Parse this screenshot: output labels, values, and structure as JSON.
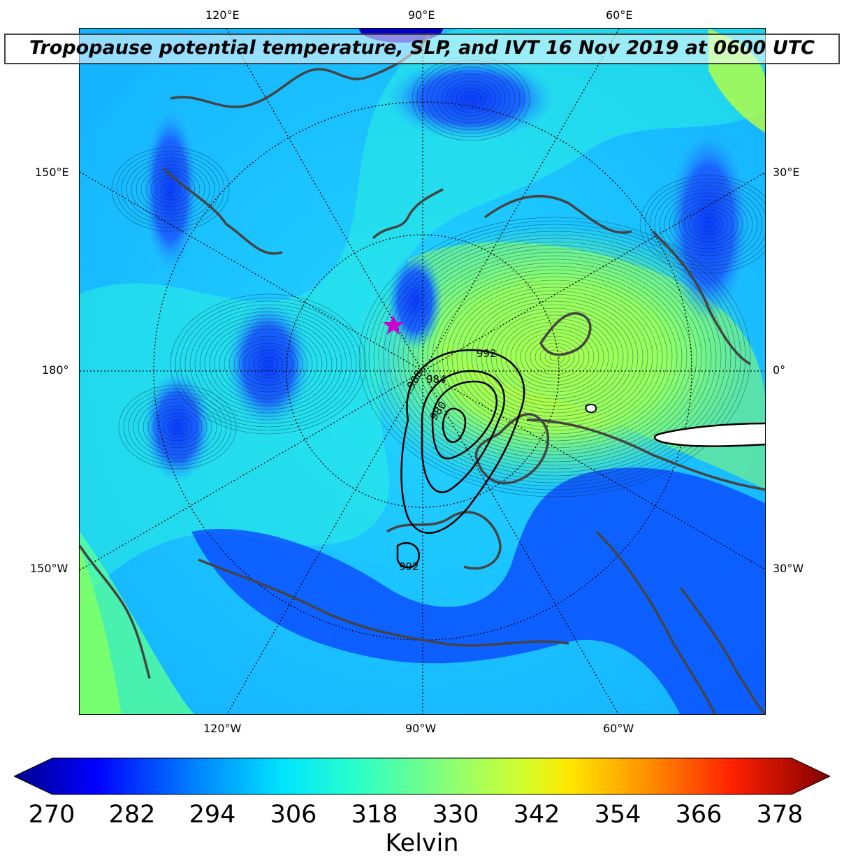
{
  "title": "Tropopause potential temperature, SLP, and IVT 16 Nov 2019 at 0600 UTC",
  "map": {
    "top_labels": [
      "120°E",
      "90°E",
      "60°E"
    ],
    "bottom_labels": [
      "120°W",
      "90°W",
      "60°W"
    ],
    "left_labels": [
      "150°E",
      "180°",
      "150°W"
    ],
    "right_labels": [
      "30°E",
      "0°",
      "30°W"
    ],
    "slp_contours": [
      "992",
      "988",
      "984",
      "980",
      "992"
    ],
    "marker": "star-marker",
    "colors": {
      "coastline": "#444444",
      "slp_contour": "#000000",
      "marker": "#cc00cc"
    }
  },
  "colorbar": {
    "ticks": [
      "270",
      "282",
      "294",
      "306",
      "318",
      "330",
      "342",
      "354",
      "366",
      "378"
    ],
    "label": "Kelvin",
    "colormap": [
      "#00008b",
      "#0000ff",
      "#0080ff",
      "#00e5ff",
      "#29ffc8",
      "#7fff7f",
      "#d0ff2f",
      "#ffe800",
      "#ff8c00",
      "#ff2000",
      "#800000"
    ]
  }
}
